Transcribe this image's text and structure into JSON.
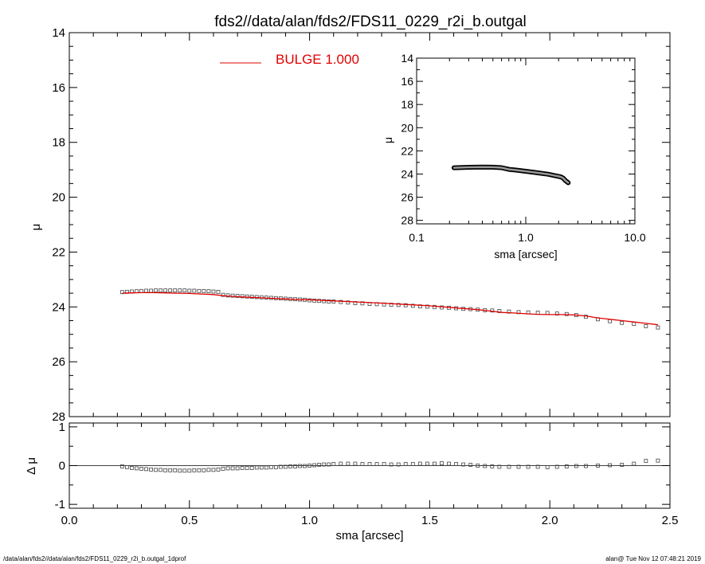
{
  "chart_data": [
    {
      "id": "main",
      "type": "scatter",
      "title": "fds2//data/alan/fds2/FDS11_0229_r2i_b.outgal",
      "xlabel": "",
      "ylabel": "μ",
      "xlim": [
        0.0,
        2.5
      ],
      "ylim": [
        28,
        14
      ],
      "xticks": [
        "0.0",
        "0.5",
        "1.0",
        "1.5",
        "2.0",
        "2.5"
      ],
      "yticks": [
        "14",
        "16",
        "18",
        "20",
        "22",
        "24",
        "26",
        "28"
      ],
      "legend": {
        "label": "BULGE  1.000",
        "color": "#e00000",
        "placement": "top-center"
      },
      "series": [
        {
          "kind": "points",
          "marker": "square",
          "x": [
            0.22,
            0.24,
            0.26,
            0.28,
            0.3,
            0.32,
            0.34,
            0.36,
            0.38,
            0.4,
            0.42,
            0.44,
            0.46,
            0.48,
            0.5,
            0.52,
            0.54,
            0.56,
            0.58,
            0.6,
            0.62,
            0.64,
            0.66,
            0.68,
            0.7,
            0.72,
            0.74,
            0.76,
            0.78,
            0.8,
            0.82,
            0.84,
            0.86,
            0.88,
            0.9,
            0.92,
            0.94,
            0.96,
            0.98,
            1.0,
            1.02,
            1.04,
            1.06,
            1.08,
            1.1,
            1.13,
            1.16,
            1.19,
            1.22,
            1.25,
            1.28,
            1.31,
            1.34,
            1.37,
            1.4,
            1.43,
            1.46,
            1.49,
            1.52,
            1.55,
            1.58,
            1.61,
            1.64,
            1.67,
            1.7,
            1.73,
            1.76,
            1.79,
            1.83,
            1.87,
            1.91,
            1.95,
            1.99,
            2.03,
            2.07,
            2.11,
            2.15,
            2.2,
            2.25,
            2.3,
            2.35,
            2.4,
            2.45
          ],
          "y": [
            23.46,
            23.45,
            23.44,
            23.43,
            23.42,
            23.41,
            23.41,
            23.4,
            23.4,
            23.4,
            23.4,
            23.4,
            23.4,
            23.4,
            23.41,
            23.41,
            23.42,
            23.42,
            23.43,
            23.44,
            23.45,
            23.56,
            23.58,
            23.59,
            23.6,
            23.61,
            23.62,
            23.63,
            23.64,
            23.65,
            23.66,
            23.67,
            23.68,
            23.69,
            23.7,
            23.71,
            23.72,
            23.73,
            23.74,
            23.76,
            23.77,
            23.78,
            23.79,
            23.8,
            23.8,
            23.82,
            23.84,
            23.86,
            23.87,
            23.89,
            23.9,
            23.91,
            23.92,
            23.93,
            23.94,
            23.96,
            23.98,
            23.99,
            24.0,
            24.02,
            24.03,
            24.05,
            24.07,
            24.08,
            24.1,
            24.12,
            24.13,
            24.15,
            24.17,
            24.19,
            24.2,
            24.21,
            24.22,
            24.24,
            24.26,
            24.3,
            24.36,
            24.45,
            24.52,
            24.58,
            24.62,
            24.7,
            24.75
          ]
        },
        {
          "kind": "line",
          "name": "BULGE",
          "color": "#e00000",
          "x": [
            0.22,
            0.25,
            0.3,
            0.35,
            0.4,
            0.45,
            0.5,
            0.55,
            0.6,
            0.65,
            0.7,
            0.75,
            0.8,
            0.85,
            0.9,
            0.95,
            1.0,
            1.05,
            1.1,
            1.2,
            1.3,
            1.4,
            1.5,
            1.6,
            1.7,
            1.75,
            1.8,
            1.85,
            1.9,
            1.95,
            2.0,
            2.05,
            2.1,
            2.15,
            2.2,
            2.25,
            2.3,
            2.35,
            2.4,
            2.45
          ],
          "y": [
            23.5,
            23.49,
            23.48,
            23.48,
            23.49,
            23.5,
            23.51,
            23.53,
            23.55,
            23.6,
            23.63,
            23.65,
            23.67,
            23.69,
            23.71,
            23.73,
            23.74,
            23.76,
            23.78,
            23.82,
            23.86,
            23.91,
            23.96,
            24.03,
            24.1,
            24.15,
            24.2,
            24.22,
            24.25,
            24.27,
            24.28,
            24.28,
            24.29,
            24.33,
            24.4,
            24.45,
            24.5,
            24.55,
            24.6,
            24.65
          ]
        }
      ]
    },
    {
      "id": "residual",
      "type": "scatter",
      "xlabel": "sma [arcsec]",
      "ylabel": "Δ μ",
      "xlim": [
        0.0,
        2.5
      ],
      "ylim": [
        -1.1,
        1.1
      ],
      "xticks": [
        "0.0",
        "0.5",
        "1.0",
        "1.5",
        "2.0",
        "2.5"
      ],
      "yticks": [
        "1",
        "0",
        "-1"
      ],
      "zero_line": true,
      "series": [
        {
          "kind": "points",
          "marker": "square",
          "x": [
            0.22,
            0.24,
            0.26,
            0.28,
            0.3,
            0.32,
            0.34,
            0.36,
            0.38,
            0.4,
            0.42,
            0.44,
            0.46,
            0.48,
            0.5,
            0.52,
            0.54,
            0.56,
            0.58,
            0.6,
            0.62,
            0.64,
            0.66,
            0.68,
            0.7,
            0.72,
            0.74,
            0.76,
            0.78,
            0.8,
            0.82,
            0.84,
            0.86,
            0.88,
            0.9,
            0.92,
            0.94,
            0.96,
            0.98,
            1.0,
            1.02,
            1.04,
            1.06,
            1.08,
            1.1,
            1.13,
            1.16,
            1.19,
            1.22,
            1.25,
            1.28,
            1.31,
            1.34,
            1.37,
            1.4,
            1.43,
            1.46,
            1.49,
            1.52,
            1.55,
            1.58,
            1.61,
            1.64,
            1.67,
            1.7,
            1.73,
            1.76,
            1.79,
            1.83,
            1.87,
            1.91,
            1.95,
            1.99,
            2.03,
            2.07,
            2.11,
            2.15,
            2.2,
            2.25,
            2.3,
            2.35,
            2.4,
            2.45
          ],
          "y": [
            -0.02,
            -0.04,
            -0.06,
            -0.07,
            -0.08,
            -0.09,
            -0.1,
            -0.11,
            -0.11,
            -0.12,
            -0.12,
            -0.12,
            -0.13,
            -0.13,
            -0.13,
            -0.12,
            -0.12,
            -0.12,
            -0.11,
            -0.11,
            -0.1,
            -0.08,
            -0.07,
            -0.07,
            -0.07,
            -0.06,
            -0.06,
            -0.06,
            -0.05,
            -0.05,
            -0.05,
            -0.04,
            -0.04,
            -0.03,
            -0.03,
            -0.02,
            -0.02,
            -0.01,
            -0.01,
            0.0,
            0.01,
            0.02,
            0.03,
            0.03,
            0.04,
            0.05,
            0.05,
            0.05,
            0.04,
            0.04,
            0.04,
            0.04,
            0.03,
            0.03,
            0.04,
            0.04,
            0.05,
            0.05,
            0.05,
            0.06,
            0.05,
            0.04,
            0.03,
            0.02,
            0.0,
            -0.01,
            -0.02,
            -0.03,
            -0.03,
            -0.03,
            -0.03,
            -0.03,
            -0.04,
            -0.03,
            -0.02,
            -0.01,
            -0.01,
            0.0,
            0.01,
            0.02,
            0.05,
            0.12,
            0.13
          ]
        }
      ]
    },
    {
      "id": "inset",
      "type": "line",
      "xlabel": "sma [arcsec]",
      "ylabel": "μ",
      "xscale": "log",
      "xlim": [
        0.1,
        10.0
      ],
      "ylim": [
        28.3,
        14
      ],
      "xticks": [
        "0.1",
        "1.0",
        "10.0"
      ],
      "yticks": [
        "14",
        "16",
        "18",
        "20",
        "22",
        "24",
        "26",
        "28"
      ],
      "series": [
        {
          "kind": "thick-line",
          "x": [
            0.22,
            0.3,
            0.4,
            0.5,
            0.6,
            0.7,
            0.8,
            1.0,
            1.2,
            1.4,
            1.6,
            1.8,
            2.0,
            2.1,
            2.2,
            2.3,
            2.45
          ],
          "y": [
            23.46,
            23.42,
            23.4,
            23.41,
            23.45,
            23.6,
            23.65,
            23.76,
            23.86,
            23.94,
            24.02,
            24.12,
            24.2,
            24.25,
            24.35,
            24.55,
            24.75
          ]
        }
      ]
    }
  ],
  "footer": {
    "left": "/data/alan/fds2//data/alan/fds2/FDS11_0229_r2i_b.outgal_1dprof",
    "right": "alan@  Tue Nov 12 07:48:21 2019"
  }
}
